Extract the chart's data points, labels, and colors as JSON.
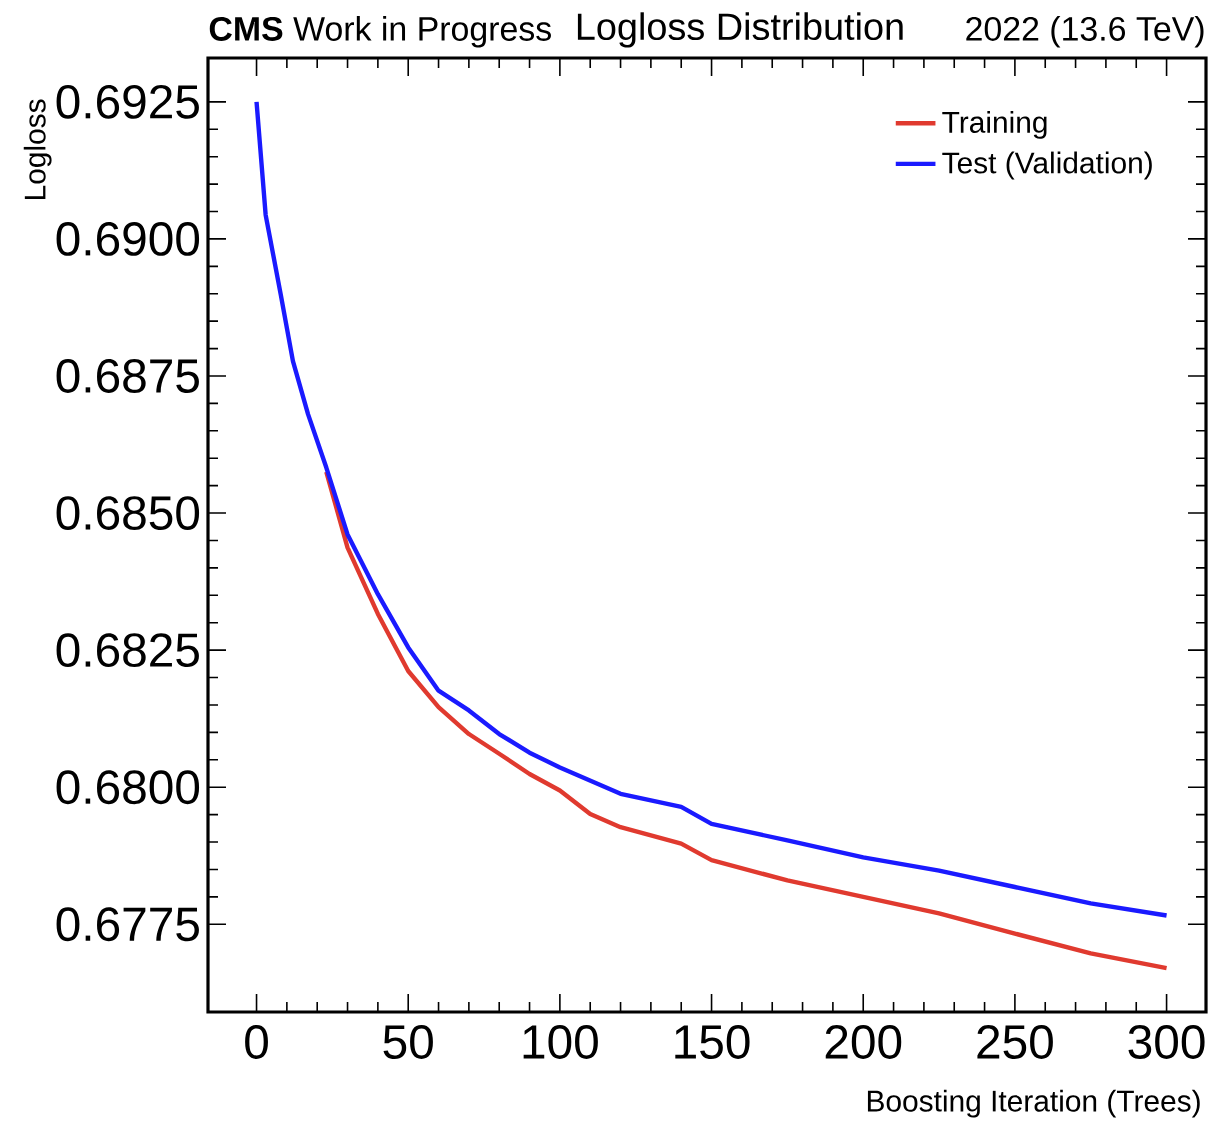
{
  "chart_data": {
    "type": "line",
    "title": "Logloss Distribution",
    "xlabel": "Boosting Iteration (Trees)",
    "ylabel": "Logloss",
    "annotations": [
      "**CMS** Work in Progress",
      "2022 (13.6 TeV)"
    ],
    "x": [
      0,
      3,
      8,
      12,
      17,
      23,
      30,
      40,
      50,
      60,
      70,
      80,
      90,
      100,
      110,
      120,
      140,
      150,
      175,
      200,
      225,
      250,
      275,
      300
    ],
    "series": [
      {
        "name": "Training",
        "color": "#e03a2f",
        "values": [
          null,
          null,
          null,
          null,
          null,
          0.68575,
          0.68437,
          0.68316,
          0.68212,
          0.68146,
          0.68097,
          0.68061,
          0.68024,
          0.67994,
          0.67951,
          0.67927,
          0.67897,
          0.67867,
          0.6783,
          0.678,
          0.6777,
          0.67733,
          0.67697,
          0.6767
        ]
      },
      {
        "name": "Test (Validation)",
        "color": "#1a1aff",
        "values": [
          0.6925,
          0.69044,
          0.68898,
          0.68777,
          0.6868,
          0.68583,
          0.68461,
          0.68352,
          0.68255,
          0.68176,
          0.6814,
          0.68097,
          0.68063,
          0.68036,
          0.68012,
          0.67988,
          0.67964,
          0.67933,
          0.67903,
          0.67872,
          0.67848,
          0.67818,
          0.67788,
          0.67766
        ]
      }
    ],
    "xlim": [
      -16,
      313
    ],
    "ylim": [
      0.6759,
      0.6933
    ],
    "xticks": [
      0,
      50,
      100,
      150,
      200,
      250,
      300
    ],
    "yticks": [
      {
        "value": 0.6775,
        "label": "0.6775"
      },
      {
        "value": 0.68,
        "label": "0.6800"
      },
      {
        "value": 0.6825,
        "label": "0.6825"
      },
      {
        "value": 0.685,
        "label": "0.6850"
      },
      {
        "value": 0.6875,
        "label": "0.6875"
      },
      {
        "value": 0.69,
        "label": "0.6900"
      },
      {
        "value": 0.6925,
        "label": "0.6925"
      }
    ],
    "legend": "top right",
    "marker": "none",
    "line_style": "solid"
  }
}
